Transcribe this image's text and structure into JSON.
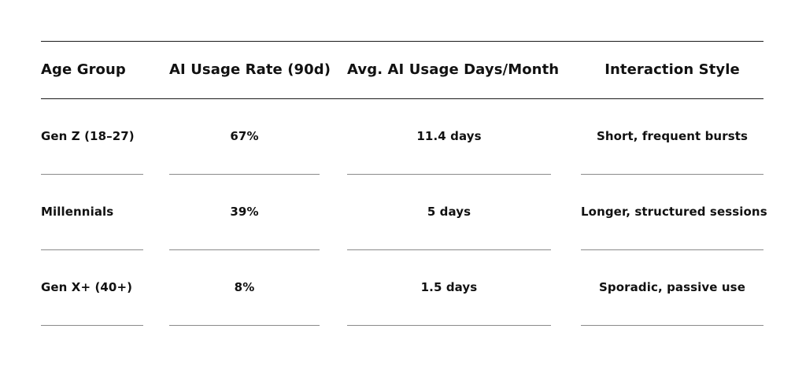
{
  "table": {
    "headers": [
      "Age Group",
      "AI Usage Rate (90d)",
      "Avg.  AI Usage Days/Month",
      "Interaction Style"
    ],
    "rows": [
      [
        "Gen Z (18–27)",
        "67%",
        "11.4 days",
        "Short, frequent bursts"
      ],
      [
        "Millennials",
        "39%",
        "5 days",
        "Longer, structured sessions"
      ],
      [
        "Gen X+ (40+)",
        "8%",
        "1.5 days",
        "Sporadic, passive use"
      ]
    ]
  }
}
